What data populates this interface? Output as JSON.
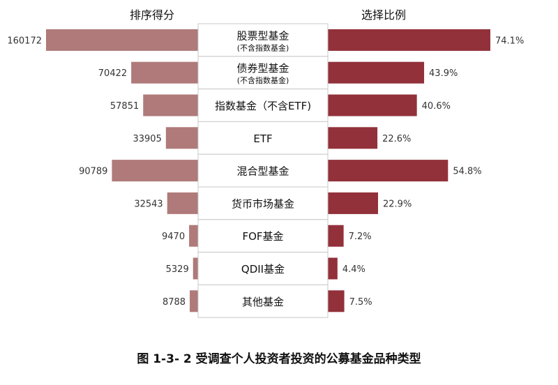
{
  "chart_data": {
    "type": "bar",
    "layout": "butterfly",
    "left_header": "排序得分",
    "right_header": "选择比例",
    "categories": [
      {
        "name": "股票型基金",
        "sub": "(不含指数基金)"
      },
      {
        "name": "债券型基金",
        "sub": "(不含指数基金)"
      },
      {
        "name": "指数基金（不含ETF)",
        "sub": ""
      },
      {
        "name": "ETF",
        "sub": ""
      },
      {
        "name": "混合型基金",
        "sub": ""
      },
      {
        "name": "货币市场基金",
        "sub": ""
      },
      {
        "name": "FOF基金",
        "sub": ""
      },
      {
        "name": "QDII基金",
        "sub": ""
      },
      {
        "name": "其他基金",
        "sub": ""
      }
    ],
    "series": [
      {
        "values": [
          160172,
          70422,
          57851,
          33905,
          90789,
          32543,
          9470,
          5329,
          8788
        ],
        "color": "#b07a7a"
      },
      {
        "values": [
          74.1,
          43.9,
          40.6,
          22.6,
          54.8,
          22.9,
          7.2,
          4.4,
          7.5
        ],
        "color": "#92313a"
      }
    ],
    "right_labels": [
      "74.1%",
      "43.9%",
      "40.6%",
      "22.6%",
      "54.8%",
      "22.9%",
      "7.2%",
      "4.4%",
      "7.5%"
    ],
    "left_max": 160172,
    "right_max": 74.1
  },
  "caption": "图 1-3- 2 受调查个人投资者投资的公募基金品种类型"
}
